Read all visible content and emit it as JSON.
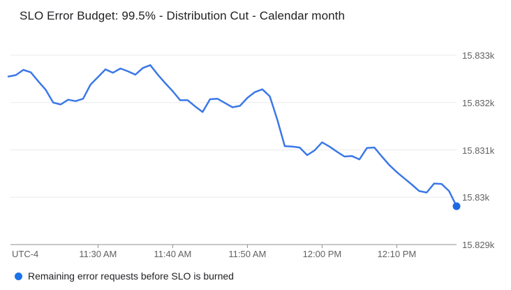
{
  "colors": {
    "line": "#3b78e7",
    "end_marker": "#1e6ae0",
    "legend_dot": "#1a73e8",
    "grid": "#ebebeb",
    "axis": "#8f8f8f",
    "axis_text": "#616161",
    "title_text": "#202124"
  },
  "legend": {
    "label": "Remaining error requests before SLO is burned"
  },
  "chart_data": {
    "type": "line",
    "title": "SLO Error Budget: 99.5% - Distribution Cut - Calendar month",
    "timezone_label": "UTC-4",
    "xlabel": "",
    "ylabel": "",
    "ylim": [
      15829,
      15833
    ],
    "grid": true,
    "legend_position": "bottom",
    "y_ticks": [
      {
        "label": "15.833k",
        "value": 15833
      },
      {
        "label": "15.832k",
        "value": 15832
      },
      {
        "label": "15.831k",
        "value": 15831
      },
      {
        "label": "15.83k",
        "value": 15830
      },
      {
        "label": "15.829k",
        "value": 15829
      }
    ],
    "x_ticks": [
      {
        "label": "11:30 AM",
        "index": 12
      },
      {
        "label": "11:40 AM",
        "index": 22
      },
      {
        "label": "11:50 AM",
        "index": 32
      },
      {
        "label": "12:00 PM",
        "index": 42
      },
      {
        "label": "12:10 PM",
        "index": 52
      }
    ],
    "series": [
      {
        "name": "Remaining error requests before SLO is burned",
        "end_marker": true,
        "x": [
          "11:18 AM",
          "11:19 AM",
          "11:20 AM",
          "11:21 AM",
          "11:22 AM",
          "11:23 AM",
          "11:24 AM",
          "11:25 AM",
          "11:26 AM",
          "11:27 AM",
          "11:28 AM",
          "11:29 AM",
          "11:30 AM",
          "11:31 AM",
          "11:32 AM",
          "11:33 AM",
          "11:34 AM",
          "11:35 AM",
          "11:36 AM",
          "11:37 AM",
          "11:38 AM",
          "11:39 AM",
          "11:40 AM",
          "11:41 AM",
          "11:42 AM",
          "11:43 AM",
          "11:44 AM",
          "11:45 AM",
          "11:46 AM",
          "11:47 AM",
          "11:48 AM",
          "11:49 AM",
          "11:50 AM",
          "11:51 AM",
          "11:52 AM",
          "11:53 AM",
          "11:54 AM",
          "11:55 AM",
          "11:56 AM",
          "11:57 AM",
          "11:58 AM",
          "11:59 AM",
          "12:00 PM",
          "12:01 PM",
          "12:02 PM",
          "12:03 PM",
          "12:04 PM",
          "12:05 PM",
          "12:06 PM",
          "12:07 PM",
          "12:08 PM",
          "12:09 PM",
          "12:10 PM",
          "12:11 PM",
          "12:12 PM",
          "12:13 PM",
          "12:14 PM",
          "12:15 PM",
          "12:16 PM",
          "12:17 PM",
          "12:18 PM"
        ],
        "values": [
          15832.55,
          15832.58,
          15832.69,
          15832.64,
          15832.45,
          15832.27,
          15832.0,
          15831.96,
          15832.06,
          15832.03,
          15832.08,
          15832.38,
          15832.54,
          15832.7,
          15832.63,
          15832.72,
          15832.66,
          15832.59,
          15832.73,
          15832.79,
          15832.59,
          15832.41,
          15832.24,
          15832.05,
          15832.05,
          15831.92,
          15831.8,
          15832.07,
          15832.08,
          15831.99,
          15831.9,
          15831.93,
          15832.1,
          15832.22,
          15832.28,
          15832.13,
          15831.64,
          15831.08,
          15831.07,
          15831.05,
          15830.89,
          15830.99,
          15831.16,
          15831.07,
          15830.96,
          15830.86,
          15830.87,
          15830.8,
          15831.04,
          15831.05,
          15830.86,
          15830.68,
          15830.53,
          15830.4,
          15830.27,
          15830.13,
          15830.1,
          15830.29,
          15830.28,
          15830.13,
          15829.81
        ]
      }
    ]
  }
}
